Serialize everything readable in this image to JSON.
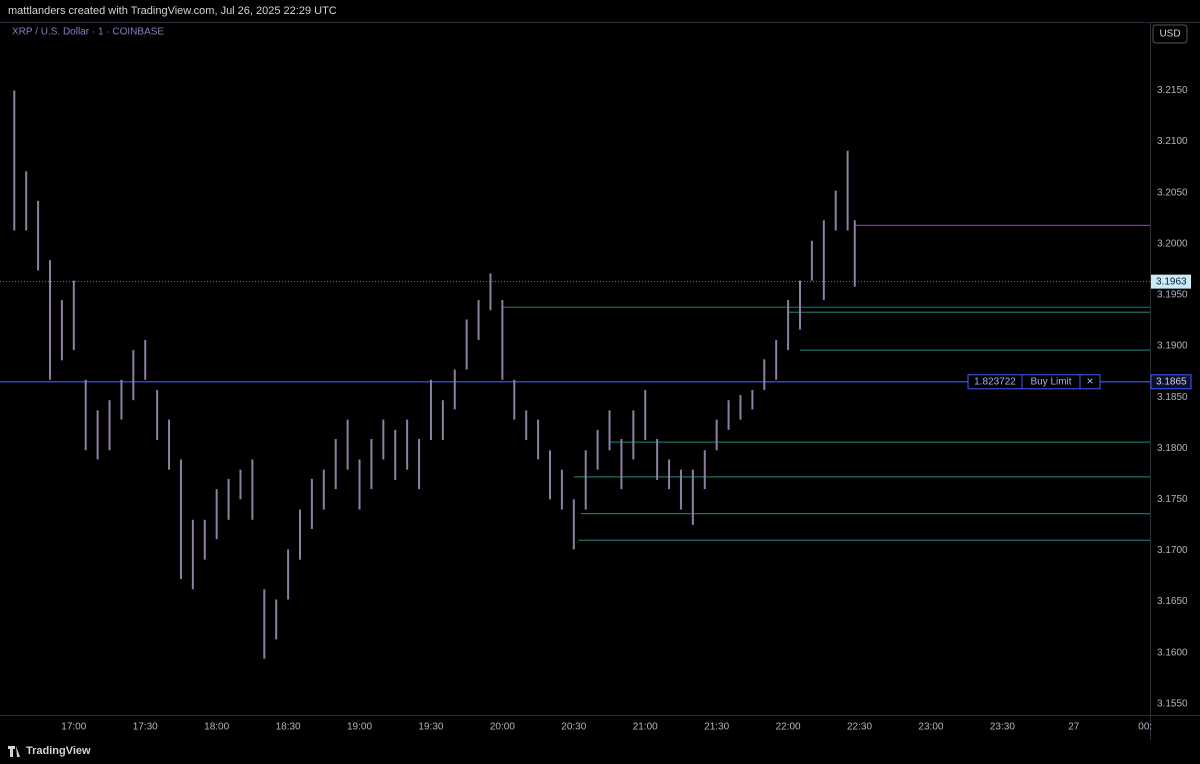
{
  "header": {
    "title": "mattlanders created with TradingView.com, Jul 26, 2025 22:29 UTC"
  },
  "footer": {
    "brand": "TradingView"
  },
  "chart_data": {
    "type": "range-bar",
    "title": "XRP / U.S. Dollar · 1 · COINBASE",
    "currency": "USD",
    "color": "#8e7fa3",
    "x": [
      "16:35",
      "16:40",
      "16:45",
      "16:50",
      "16:55",
      "17:00",
      "17:05",
      "17:10",
      "17:15",
      "17:20",
      "17:25",
      "17:30",
      "17:35",
      "17:40",
      "17:45",
      "17:50",
      "17:55",
      "18:00",
      "18:05",
      "18:10",
      "18:15",
      "18:20",
      "18:25",
      "18:30",
      "18:35",
      "18:40",
      "18:45",
      "18:50",
      "18:55",
      "19:00",
      "19:05",
      "19:10",
      "19:15",
      "19:20",
      "19:25",
      "19:30",
      "19:35",
      "19:40",
      "19:45",
      "19:50",
      "19:55",
      "20:00",
      "20:05",
      "20:10",
      "20:15",
      "20:20",
      "20:25",
      "20:30",
      "20:35",
      "20:40",
      "20:45",
      "20:50",
      "20:55",
      "21:00",
      "21:05",
      "21:10",
      "21:15",
      "21:20",
      "21:25",
      "21:30",
      "21:35",
      "21:40",
      "21:45",
      "21:50",
      "21:55",
      "22:00",
      "22:05",
      "22:10",
      "22:15",
      "22:20",
      "22:25",
      "22:28"
    ],
    "high": [
      3.215,
      3.2071,
      3.2042,
      3.1984,
      3.1945,
      3.1964,
      3.1867,
      3.1837,
      3.1847,
      3.1867,
      3.1896,
      3.1906,
      3.1857,
      3.1828,
      3.1789,
      3.173,
      3.173,
      3.176,
      3.177,
      3.1779,
      3.1789,
      3.1662,
      3.1652,
      3.1701,
      3.174,
      3.177,
      3.1779,
      3.1809,
      3.1828,
      3.1789,
      3.1809,
      3.1828,
      3.1818,
      3.1828,
      3.1809,
      3.1867,
      3.1847,
      3.1877,
      3.1926,
      3.1945,
      3.1971,
      3.1945,
      3.1867,
      3.1837,
      3.1828,
      3.1798,
      3.1779,
      3.175,
      3.1798,
      3.1818,
      3.1837,
      3.1809,
      3.1837,
      3.1857,
      3.1809,
      3.1789,
      3.1779,
      3.1779,
      3.1798,
      3.1828,
      3.1847,
      3.1852,
      3.1857,
      3.1887,
      3.1906,
      3.1945,
      3.1964,
      3.2003,
      3.2023,
      3.2052,
      3.2091,
      3.2023
    ],
    "low": [
      3.2013,
      3.2013,
      3.1974,
      3.1867,
      3.1886,
      3.1896,
      3.1798,
      3.1789,
      3.1798,
      3.1828,
      3.1847,
      3.1867,
      3.1808,
      3.1779,
      3.1672,
      3.1662,
      3.1691,
      3.1711,
      3.173,
      3.175,
      3.173,
      3.1594,
      3.1613,
      3.1652,
      3.1691,
      3.1721,
      3.174,
      3.176,
      3.1779,
      3.174,
      3.176,
      3.1789,
      3.1769,
      3.1779,
      3.176,
      3.1808,
      3.1808,
      3.1838,
      3.1877,
      3.1906,
      3.1935,
      3.1867,
      3.1828,
      3.1808,
      3.1789,
      3.175,
      3.174,
      3.1701,
      3.174,
      3.1779,
      3.1798,
      3.176,
      3.1789,
      3.1808,
      3.1769,
      3.176,
      3.174,
      3.1725,
      3.176,
      3.1798,
      3.1818,
      3.1828,
      3.1838,
      3.1857,
      3.1867,
      3.1896,
      3.1916,
      3.1964,
      3.1945,
      3.2013,
      3.2013,
      3.1958
    ],
    "xlim": [
      "16:29",
      "00:32"
    ],
    "xticks": [
      "17:00",
      "17:30",
      "18:00",
      "18:30",
      "19:00",
      "19:30",
      "20:00",
      "20:30",
      "21:00",
      "21:30",
      "22:00",
      "22:30",
      "23:00",
      "23:30",
      {
        "value": "00:00",
        "label": "27"
      },
      {
        "value": "00:30",
        "label": "00:"
      }
    ],
    "ylim": [
      3.1539,
      3.2217
    ],
    "yticks": [
      {
        "value": 3.155,
        "label": "3.1550"
      },
      {
        "value": 3.16,
        "label": "3.1600"
      },
      {
        "value": 3.165,
        "label": "3.1650"
      },
      {
        "value": 3.17,
        "label": "3.1700"
      },
      {
        "value": 3.175,
        "label": "3.1750"
      },
      {
        "value": 3.18,
        "label": "3.1800"
      },
      {
        "value": 3.185,
        "label": "3.1850"
      },
      {
        "value": 3.19,
        "label": "3.1900"
      },
      {
        "value": 3.195,
        "label": "3.1950"
      },
      {
        "value": 3.2,
        "label": "3.2000"
      },
      {
        "value": 3.205,
        "label": "3.2050"
      },
      {
        "value": 3.21,
        "label": "3.2100"
      },
      {
        "value": 3.215,
        "label": "3.2150"
      }
    ],
    "levels": [
      {
        "value": 3.2018,
        "from": "22:28",
        "color": "#8a2fa8"
      },
      {
        "value": 3.1938,
        "from": "20:00",
        "color": "#1f6d68"
      },
      {
        "value": 3.1933,
        "from": "22:00",
        "color": "#1f6d68"
      },
      {
        "value": 3.1896,
        "from": "22:05",
        "color": "#1f6d68"
      },
      {
        "value": 3.1806,
        "from": "20:45",
        "color": "#1f6d68"
      },
      {
        "value": 3.1772,
        "from": "20:30",
        "color": "#1f6d68"
      },
      {
        "value": 3.1736,
        "from": "20:33",
        "color": "#1f6d68"
      },
      {
        "value": 3.171,
        "from": "20:32",
        "color": "#1f6d68"
      }
    ],
    "last_price": {
      "value": 3.1963,
      "color": "#b04fc8"
    },
    "order": {
      "price": 3.1865,
      "quantity": "1.823722",
      "side": "Buy Limit",
      "close": "×",
      "color": "#3f5bff"
    }
  }
}
